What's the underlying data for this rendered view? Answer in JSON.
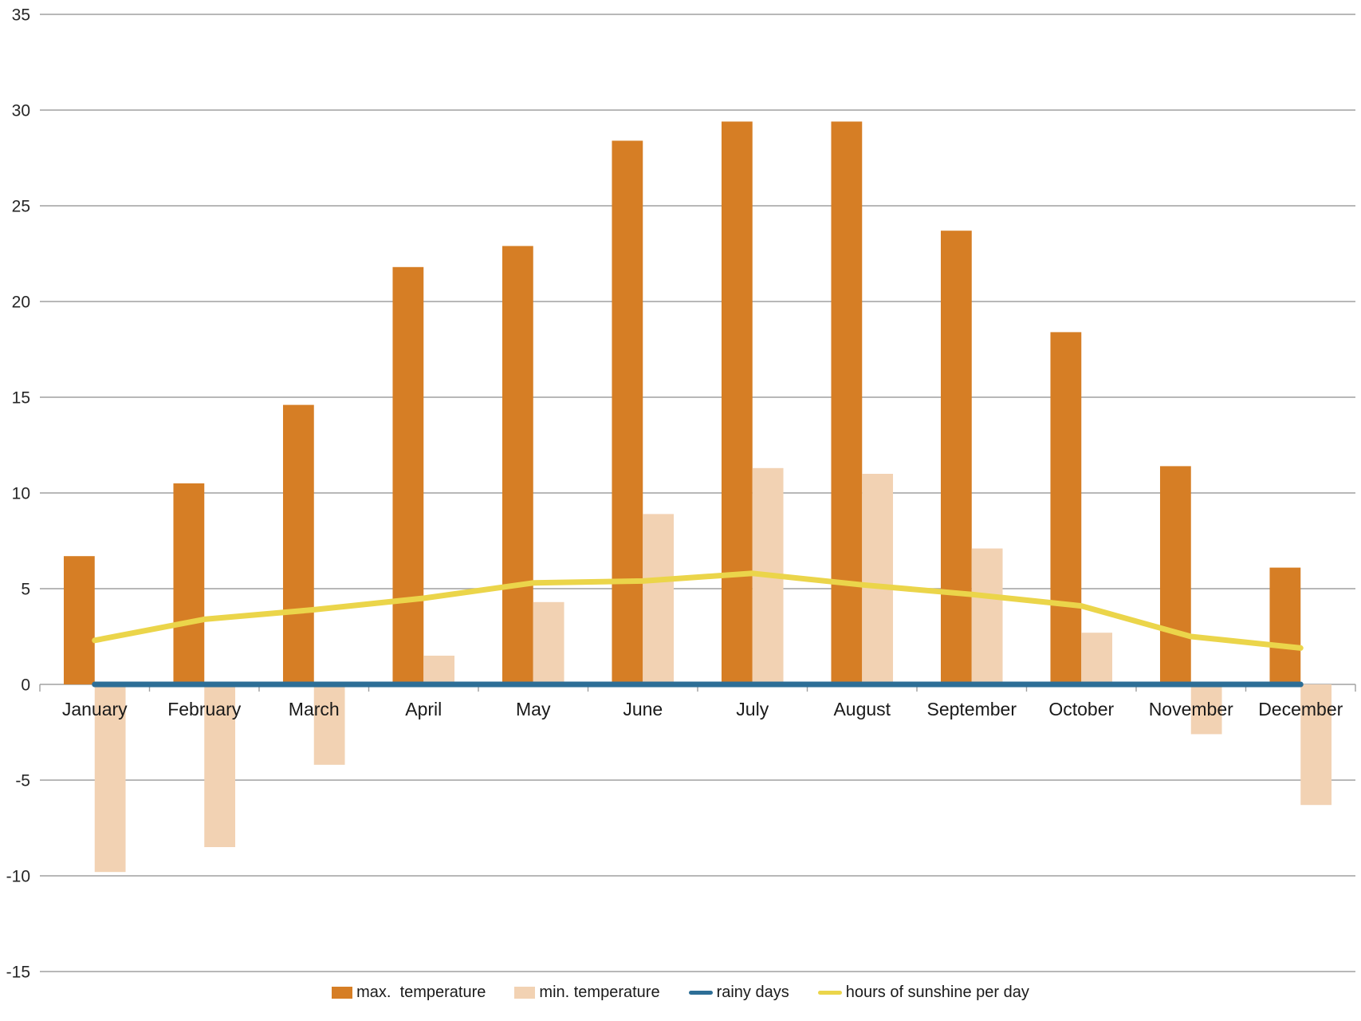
{
  "chart_data": {
    "type": "combo",
    "title": "",
    "xlabel": "",
    "ylabel": "",
    "categories": [
      "January",
      "February",
      "March",
      "April",
      "May",
      "June",
      "July",
      "August",
      "September",
      "October",
      "November",
      "December"
    ],
    "bar_series": [
      {
        "name": "max.  temperature",
        "color": "#D67E25",
        "values": [
          6.7,
          10.5,
          14.6,
          21.8,
          22.9,
          28.4,
          29.4,
          29.4,
          23.7,
          18.4,
          11.4,
          6.1
        ]
      },
      {
        "name": "min. temperature",
        "color": "#F2D2B3",
        "values": [
          -9.8,
          -8.5,
          -4.2,
          1.5,
          4.3,
          8.9,
          11.3,
          11.0,
          7.1,
          2.7,
          -2.6,
          -6.3
        ]
      }
    ],
    "line_series": [
      {
        "name": "rainy days",
        "color": "#2D6E96",
        "values": [
          0,
          0,
          0,
          0,
          0,
          0,
          0,
          0,
          0,
          0,
          0,
          0
        ]
      },
      {
        "name": "hours of sunshine per day",
        "color": "#EBD54A",
        "values": [
          2.3,
          3.4,
          3.9,
          4.5,
          5.3,
          5.4,
          5.8,
          5.2,
          4.7,
          4.1,
          2.5,
          1.9
        ]
      }
    ],
    "ylim": [
      -15,
      35
    ],
    "ytick_step": 5,
    "ytick_labels": [
      "-15",
      "-10",
      "-5",
      "0",
      "5",
      "10",
      "15",
      "20",
      "25",
      "30",
      "35"
    ],
    "grid": true,
    "legend_position": "bottom",
    "gridline_color": "#A0A0A0",
    "ytick_label_color": "#262626",
    "xtick_label_color": "#1a1a1a",
    "background_color": "#ffffff"
  }
}
